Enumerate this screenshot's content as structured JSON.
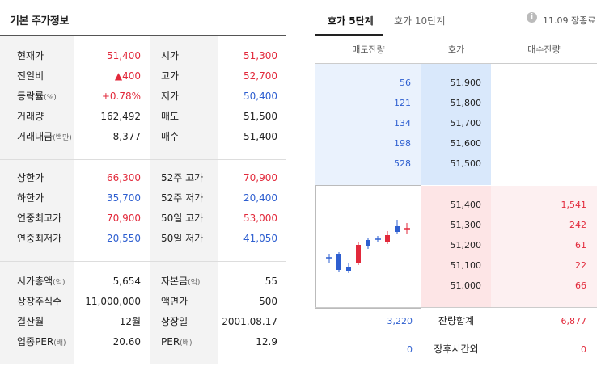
{
  "left": {
    "title": "기본 주가정보",
    "block1": [
      {
        "l1": "현재가",
        "l1s": "",
        "v1": "51,400",
        "c1": "red",
        "l2": "시가",
        "l2s": "",
        "v2": "51,300",
        "c2": "red"
      },
      {
        "l1": "전일비",
        "l1s": "",
        "v1": "▲400",
        "c1": "red",
        "l2": "고가",
        "l2s": "",
        "v2": "52,700",
        "c2": "red"
      },
      {
        "l1": "등락률",
        "l1s": "(%)",
        "v1": "+0.78%",
        "c1": "red",
        "l2": "저가",
        "l2s": "",
        "v2": "50,400",
        "c2": "blue"
      },
      {
        "l1": "거래량",
        "l1s": "",
        "v1": "162,492",
        "c1": "black",
        "l2": "매도",
        "l2s": "",
        "v2": "51,500",
        "c2": "black"
      },
      {
        "l1": "거래대금",
        "l1s": "(백만)",
        "v1": "8,377",
        "c1": "black",
        "l2": "매수",
        "l2s": "",
        "v2": "51,400",
        "c2": "black"
      }
    ],
    "block2": [
      {
        "l1": "상한가",
        "l1s": "",
        "v1": "66,300",
        "c1": "red",
        "l2": "52주 고가",
        "l2s": "",
        "v2": "70,900",
        "c2": "red"
      },
      {
        "l1": "하한가",
        "l1s": "",
        "v1": "35,700",
        "c1": "blue",
        "l2": "52주 저가",
        "l2s": "",
        "v2": "20,400",
        "c2": "blue"
      },
      {
        "l1": "연중최고가",
        "l1s": "",
        "v1": "70,900",
        "c1": "red",
        "l2": "50일 고가",
        "l2s": "",
        "v2": "53,000",
        "c2": "red"
      },
      {
        "l1": "연중최저가",
        "l1s": "",
        "v1": "20,550",
        "c1": "blue",
        "l2": "50일 저가",
        "l2s": "",
        "v2": "41,050",
        "c2": "blue"
      }
    ],
    "block3": [
      {
        "l1": "시가총액",
        "l1s": "(억)",
        "v1": "5,654",
        "c1": "black",
        "l2": "자본금",
        "l2s": "(억)",
        "v2": "55",
        "c2": "black"
      },
      {
        "l1": "상장주식수",
        "l1s": "",
        "v1": "11,000,000",
        "c1": "black",
        "l2": "액면가",
        "l2s": "",
        "v2": "500",
        "c2": "black"
      },
      {
        "l1": "결산월",
        "l1s": "",
        "v1": "12월",
        "c1": "black",
        "l2": "상장일",
        "l2s": "",
        "v2": "2001.08.17",
        "c2": "black"
      },
      {
        "l1": "업종PER",
        "l1s": "(배)",
        "v1": "20.60",
        "c1": "black",
        "l2": "PER",
        "l2s": "(배)",
        "v2": "12.9",
        "c2": "black"
      }
    ]
  },
  "right": {
    "tabs": [
      "호가 5단계",
      "호가 10단계"
    ],
    "status": "11.09 장종료",
    "info_icon": "i",
    "headers": [
      "매도잔량",
      "호가",
      "매수잔량"
    ],
    "asks": [
      {
        "qty": "56",
        "price": "51,900"
      },
      {
        "qty": "121",
        "price": "51,800"
      },
      {
        "qty": "134",
        "price": "51,700"
      },
      {
        "qty": "198",
        "price": "51,600"
      },
      {
        "qty": "528",
        "price": "51,500"
      }
    ],
    "bids": [
      {
        "price": "51,400",
        "qty": "1,541"
      },
      {
        "price": "51,300",
        "qty": "242"
      },
      {
        "price": "51,200",
        "qty": "61"
      },
      {
        "price": "51,100",
        "qty": "22"
      },
      {
        "price": "51,000",
        "qty": "66"
      }
    ],
    "total": {
      "ask": "3,220",
      "label": "잔량합계",
      "bid": "6,877"
    },
    "after": {
      "ask": "0",
      "label": "장후시간외",
      "bid": "0"
    }
  }
}
